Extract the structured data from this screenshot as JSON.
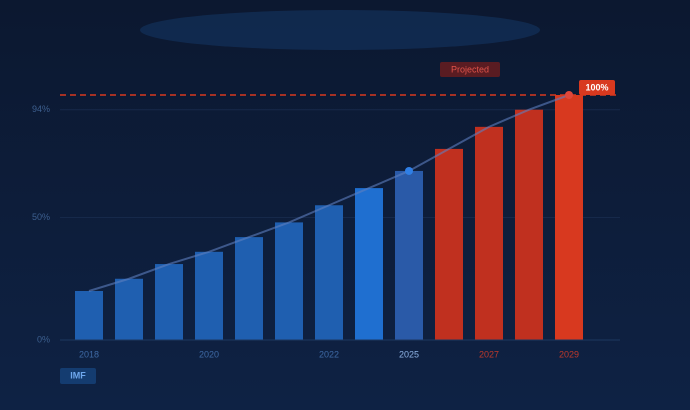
{
  "chart_data": {
    "type": "bar",
    "categories": [
      "2018",
      null,
      null,
      "2020",
      null,
      null,
      "2022",
      null,
      "2025",
      null,
      "2027",
      null,
      "2029"
    ],
    "values": [
      20,
      25,
      31,
      36,
      42,
      48,
      55,
      62,
      69,
      78,
      87,
      94,
      100
    ],
    "value_labels": [
      null,
      null,
      null,
      null,
      null,
      null,
      null,
      null,
      null,
      null,
      null,
      null,
      "100%"
    ],
    "colors": [
      "#1f5fb0",
      "#1f5fb0",
      "#1f5fb0",
      "#1f5fb0",
      "#1f5fb0",
      "#1f5fb0",
      "#1f5fb0",
      "#1f6fd0",
      "#2a5aa8",
      "#c0301f",
      "#c0301f",
      "#c0301f",
      "#d8391f"
    ],
    "projected_from": 9,
    "annotation": "Projected",
    "source": "IMF",
    "ylim": [
      0,
      100
    ],
    "yticks": [
      {
        "value": 0,
        "label": "0%"
      },
      {
        "value": 50,
        "label": "50%"
      },
      {
        "value": 94,
        "label": "94%"
      }
    ],
    "grid": true
  }
}
